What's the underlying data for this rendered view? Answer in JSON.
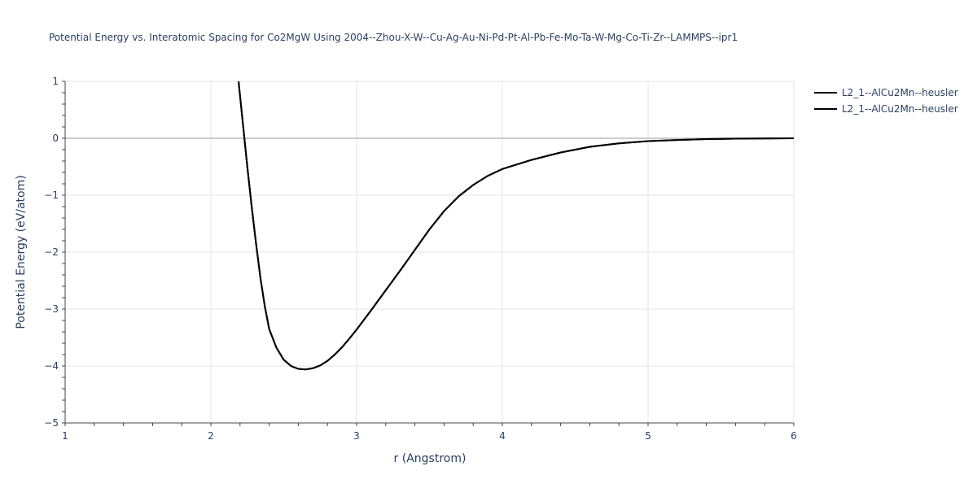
{
  "chart_data": {
    "type": "line",
    "title": "Potential Energy vs. Interatomic Spacing for Co2MgW Using 2004--Zhou-X-W--Cu-Ag-Au-Ni-Pd-Pt-Al-Pb-Fe-Mo-Ta-W-Mg-Co-Ti-Zr--LAMMPS--ipr1",
    "xlabel": "r (Angstrom)",
    "ylabel": "Potential Energy (eV/atom)",
    "xlim": [
      1,
      6
    ],
    "ylim": [
      -5,
      1
    ],
    "x_ticks": [
      "1",
      "2",
      "3",
      "4",
      "5",
      "6"
    ],
    "y_ticks": [
      "1",
      "0",
      "−1",
      "−2",
      "−3",
      "−4",
      "−5"
    ],
    "x_tick_values": [
      1,
      2,
      3,
      4,
      5,
      6
    ],
    "y_tick_values": [
      1,
      0,
      -1,
      -2,
      -3,
      -4,
      -5
    ],
    "grid": true,
    "legend_position": "top-right",
    "series": [
      {
        "name": "L2_1--AlCu2Mn--heusler",
        "color": "#000000",
        "x": [
          2.19,
          2.22,
          2.25,
          2.28,
          2.31,
          2.34,
          2.37,
          2.4,
          2.45,
          2.5,
          2.55,
          2.6,
          2.65,
          2.7,
          2.75,
          2.8,
          2.85,
          2.9,
          2.95,
          3.0,
          3.1,
          3.2,
          3.3,
          3.4,
          3.5,
          3.6,
          3.7,
          3.8,
          3.9,
          4.0,
          4.2,
          4.4,
          4.6,
          4.8,
          5.0,
          5.2,
          5.4,
          5.6,
          5.8,
          6.0
        ],
        "y": [
          1.0,
          0.25,
          -0.5,
          -1.2,
          -1.85,
          -2.45,
          -2.95,
          -3.35,
          -3.68,
          -3.89,
          -4.0,
          -4.05,
          -4.06,
          -4.04,
          -3.99,
          -3.91,
          -3.8,
          -3.67,
          -3.52,
          -3.36,
          -3.02,
          -2.67,
          -2.32,
          -1.96,
          -1.6,
          -1.28,
          -1.02,
          -0.82,
          -0.66,
          -0.54,
          -0.38,
          -0.25,
          -0.15,
          -0.09,
          -0.05,
          -0.03,
          -0.015,
          -0.008,
          -0.004,
          0.0
        ]
      },
      {
        "name": "L2_1--AlCu2Mn--heusler",
        "color": "#000000",
        "x": [
          2.19,
          2.22,
          2.25,
          2.28,
          2.31,
          2.34,
          2.37,
          2.4,
          2.45,
          2.5,
          2.55,
          2.6,
          2.65,
          2.7,
          2.75,
          2.8,
          2.85,
          2.9,
          2.95,
          3.0,
          3.1,
          3.2,
          3.3,
          3.4,
          3.5,
          3.6,
          3.7,
          3.8,
          3.9,
          4.0,
          4.2,
          4.4,
          4.6,
          4.8,
          5.0,
          5.2,
          5.4,
          5.6,
          5.8,
          6.0
        ],
        "y": [
          1.0,
          0.25,
          -0.5,
          -1.2,
          -1.85,
          -2.45,
          -2.95,
          -3.35,
          -3.68,
          -3.89,
          -4.0,
          -4.05,
          -4.06,
          -4.04,
          -3.99,
          -3.91,
          -3.8,
          -3.67,
          -3.52,
          -3.36,
          -3.02,
          -2.67,
          -2.32,
          -1.96,
          -1.6,
          -1.28,
          -1.02,
          -0.82,
          -0.66,
          -0.54,
          -0.38,
          -0.25,
          -0.15,
          -0.09,
          -0.05,
          -0.03,
          -0.015,
          -0.008,
          -0.004,
          0.0
        ]
      }
    ]
  }
}
